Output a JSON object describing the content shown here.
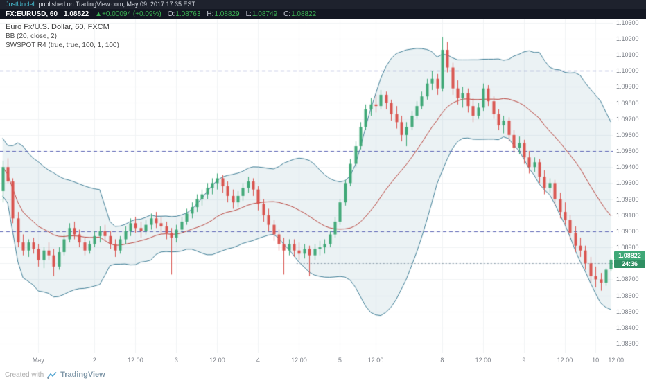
{
  "meta_bar": {
    "username": "JustUncleL",
    "published_text": "published on TradingView.com, May 09, 2017 17:35 EST"
  },
  "symbol_bar": {
    "symbol": "FX:EURUSD, 60",
    "last": "1.08822",
    "change": "▲+0.00094 (+0.09%)",
    "o_label": "O:",
    "o": "1.08763",
    "h_label": "H:",
    "h": "1.08829",
    "l_label": "L:",
    "l": "1.08749",
    "c_label": "C:",
    "c": "1.08822"
  },
  "legend": {
    "title": "Euro Fx/U.S. Dollar, 60, FXCM",
    "bb": "BB (20, close, 2)",
    "swspot": "SWSPOT R4 (true, true, 100, 1, 100)"
  },
  "price_badge": {
    "price": "1.08822",
    "countdown": "24:36"
  },
  "footer": {
    "created_with": "Created with",
    "brand": "TradingView"
  },
  "colors": {
    "up": "#3fa877",
    "down": "#d9544f",
    "band_line": "#3e7d95",
    "band_fill": "rgba(62,125,149,0.10)",
    "basis": "#b8433c",
    "pivot": "#5b63b5",
    "dotted_level": "#8a9ba8",
    "grid": "#f0f3f5",
    "badge_bg": "#3fa877",
    "countdown_bg": "#2f8f63"
  },
  "chart_data": {
    "type": "candlestick",
    "title": "Euro Fx/U.S. Dollar, 60, FXCM",
    "interval_minutes": 60,
    "indicators": [
      "BB (20, close, 2)",
      "SWSPOT R4 (true, true, 100, 1, 100)"
    ],
    "y_min": 1.0824,
    "y_max": 1.1032,
    "last_price": 1.08822,
    "y_ticks": [
      "1.10300",
      "1.10200",
      "1.10100",
      "1.10000",
      "1.09900",
      "1.09800",
      "1.09700",
      "1.09600",
      "1.09500",
      "1.09400",
      "1.09300",
      "1.09200",
      "1.09100",
      "1.09000",
      "1.08900",
      "1.08800",
      "1.08700",
      "1.08600",
      "1.08500",
      "1.08400",
      "1.08300"
    ],
    "x_ticks": [
      {
        "i": 7,
        "label": "May"
      },
      {
        "i": 18,
        "label": "2"
      },
      {
        "i": 26,
        "label": "12:00"
      },
      {
        "i": 34,
        "label": "3"
      },
      {
        "i": 42,
        "label": "12:00"
      },
      {
        "i": 50,
        "label": "4"
      },
      {
        "i": 58,
        "label": "12:00"
      },
      {
        "i": 66,
        "label": "5"
      },
      {
        "i": 73,
        "label": "12:00"
      },
      {
        "i": 86,
        "label": "8"
      },
      {
        "i": 94,
        "label": "12:00"
      },
      {
        "i": 102,
        "label": "9"
      },
      {
        "i": 110,
        "label": "12:00"
      },
      {
        "i": 116,
        "label": "10"
      },
      {
        "i": 120,
        "label": "12:00"
      }
    ],
    "levels": [
      {
        "price": 1.1,
        "style": "dashed",
        "from": 0
      },
      {
        "price": 1.095,
        "style": "dashed",
        "from": 0
      },
      {
        "price": 1.09,
        "style": "dashed",
        "from": 0
      },
      {
        "price": 1.088,
        "style": "dotted",
        "from": 58
      }
    ],
    "bollinger": {
      "length": 20,
      "mult": 2,
      "source": "close"
    },
    "candles": [
      [
        1.0925,
        1.0944,
        1.0918,
        1.094
      ],
      [
        1.094,
        1.09455,
        1.093,
        1.0931
      ],
      [
        1.0931,
        1.0933,
        1.0905,
        1.0908
      ],
      [
        1.0908,
        1.0912,
        1.089,
        1.0893
      ],
      [
        1.0893,
        1.0898,
        1.0885,
        1.0888
      ],
      [
        1.0888,
        1.0895,
        1.0884,
        1.0893
      ],
      [
        1.0893,
        1.0896,
        1.0886,
        1.0889
      ],
      [
        1.0889,
        1.0892,
        1.0878,
        1.0882
      ],
      [
        1.0882,
        1.089,
        1.0877,
        1.0888
      ],
      [
        1.0888,
        1.0893,
        1.0882,
        1.0885
      ],
      [
        1.0885,
        1.0889,
        1.0872,
        1.0878
      ],
      [
        1.0878,
        1.089,
        1.0876,
        1.0887
      ],
      [
        1.0887,
        1.0898,
        1.0885,
        1.0895
      ],
      [
        1.0895,
        1.0905,
        1.0893,
        1.0902
      ],
      [
        1.0902,
        1.0906,
        1.0895,
        1.0898
      ],
      [
        1.0898,
        1.0901,
        1.089,
        1.0893
      ],
      [
        1.0893,
        1.0896,
        1.0885,
        1.0888
      ],
      [
        1.0888,
        1.0894,
        1.0886,
        1.0892
      ],
      [
        1.0892,
        1.09,
        1.089,
        1.0897
      ],
      [
        1.0897,
        1.0903,
        1.0893,
        1.09
      ],
      [
        1.09,
        1.0904,
        1.0894,
        1.0897
      ],
      [
        1.0897,
        1.09,
        1.0889,
        1.0892
      ],
      [
        1.0892,
        1.0895,
        1.0884,
        1.0888
      ],
      [
        1.0888,
        1.0897,
        1.0886,
        1.0895
      ],
      [
        1.0895,
        1.0903,
        1.0892,
        1.09
      ],
      [
        1.09,
        1.0908,
        1.0897,
        1.0905
      ],
      [
        1.0905,
        1.0909,
        1.0899,
        1.0902
      ],
      [
        1.0902,
        1.0906,
        1.0896,
        1.09
      ],
      [
        1.09,
        1.0907,
        1.0898,
        1.0904
      ],
      [
        1.0904,
        1.0911,
        1.0901,
        1.0908
      ],
      [
        1.0908,
        1.0912,
        1.0902,
        1.0905
      ],
      [
        1.0905,
        1.0909,
        1.0899,
        1.0903
      ],
      [
        1.0903,
        1.0906,
        1.0895,
        1.0899
      ],
      [
        1.0899,
        1.0902,
        1.0873,
        1.0896
      ],
      [
        1.0896,
        1.0904,
        1.0893,
        1.0901
      ],
      [
        1.0901,
        1.0909,
        1.0899,
        1.0906
      ],
      [
        1.0906,
        1.0914,
        1.0904,
        1.0911
      ],
      [
        1.0911,
        1.0918,
        1.0908,
        1.0915
      ],
      [
        1.0915,
        1.0923,
        1.0912,
        1.092
      ],
      [
        1.092,
        1.0926,
        1.0916,
        1.0923
      ],
      [
        1.0923,
        1.093,
        1.092,
        1.0927
      ],
      [
        1.0927,
        1.0933,
        1.0923,
        1.093
      ],
      [
        1.093,
        1.0936,
        1.0926,
        1.0933
      ],
      [
        1.0933,
        1.0935,
        1.0924,
        1.0928
      ],
      [
        1.0928,
        1.0931,
        1.0918,
        1.0922
      ],
      [
        1.0922,
        1.0926,
        1.0914,
        1.0918
      ],
      [
        1.0918,
        1.0925,
        1.0915,
        1.0922
      ],
      [
        1.0922,
        1.093,
        1.0919,
        1.0927
      ],
      [
        1.0927,
        1.0934,
        1.0924,
        1.0931
      ],
      [
        1.0931,
        1.0933,
        1.0922,
        1.0926
      ],
      [
        1.0926,
        1.0928,
        1.0913,
        1.0917
      ],
      [
        1.0917,
        1.092,
        1.0906,
        1.091
      ],
      [
        1.091,
        1.0914,
        1.09,
        1.0904
      ],
      [
        1.0904,
        1.0907,
        1.0894,
        1.0898
      ],
      [
        1.0898,
        1.0901,
        1.0888,
        1.0892
      ],
      [
        1.0892,
        1.0896,
        1.0873,
        1.0888
      ],
      [
        1.0888,
        1.0895,
        1.0885,
        1.0892
      ],
      [
        1.0892,
        1.0895,
        1.0884,
        1.0888
      ],
      [
        1.0888,
        1.0893,
        1.0882,
        1.0886
      ],
      [
        1.0886,
        1.0892,
        1.0883,
        1.0889
      ],
      [
        1.0889,
        1.0891,
        1.0872,
        1.0885
      ],
      [
        1.0885,
        1.0892,
        1.0882,
        1.0889
      ],
      [
        1.0889,
        1.0894,
        1.0885,
        1.089
      ],
      [
        1.089,
        1.0895,
        1.0886,
        1.0892
      ],
      [
        1.0892,
        1.09,
        1.089,
        1.0898
      ],
      [
        1.0898,
        1.0909,
        1.0896,
        1.0906
      ],
      [
        1.0906,
        1.092,
        1.0904,
        1.0918
      ],
      [
        1.0918,
        1.0932,
        1.0916,
        1.093
      ],
      [
        1.093,
        1.0945,
        1.0928,
        1.0942
      ],
      [
        1.0942,
        1.0956,
        1.094,
        1.0953
      ],
      [
        1.0953,
        1.0968,
        1.0951,
        1.0965
      ],
      [
        1.0965,
        1.0979,
        1.0963,
        1.0976
      ],
      [
        1.0976,
        1.0983,
        1.0972,
        1.0979
      ],
      [
        1.0979,
        1.0985,
        1.0974,
        1.0978
      ],
      [
        1.0978,
        1.0988,
        1.0976,
        1.0985
      ],
      [
        1.0985,
        1.0987,
        1.0976,
        1.098
      ],
      [
        1.098,
        1.0982,
        1.0969,
        1.0973
      ],
      [
        1.0973,
        1.0978,
        1.0964,
        1.0968
      ],
      [
        1.0968,
        1.0972,
        1.0956,
        1.096
      ],
      [
        1.096,
        1.0968,
        1.0953,
        1.0965
      ],
      [
        1.0965,
        1.0975,
        1.0963,
        1.0972
      ],
      [
        1.0972,
        1.0981,
        1.097,
        1.0978
      ],
      [
        1.0978,
        1.0987,
        1.0976,
        1.0984
      ],
      [
        1.0984,
        1.0995,
        1.0982,
        1.0992
      ],
      [
        1.0992,
        1.1,
        1.0988,
        1.0995
      ],
      [
        1.0995,
        1.0998,
        1.0985,
        1.0989
      ],
      [
        1.0989,
        1.1021,
        1.0987,
        1.1013
      ],
      [
        1.1013,
        1.1018,
        1.0999,
        1.1002
      ],
      [
        1.1002,
        1.1005,
        1.0985,
        1.0989
      ],
      [
        1.0989,
        1.0994,
        1.0979,
        1.0983
      ],
      [
        1.0983,
        1.099,
        1.0977,
        1.0986
      ],
      [
        1.0986,
        1.0989,
        1.0974,
        1.0978
      ],
      [
        1.0978,
        1.0983,
        1.0968,
        1.0972
      ],
      [
        1.0972,
        1.098,
        1.097,
        1.0977
      ],
      [
        1.0977,
        1.0992,
        1.0975,
        1.0989
      ],
      [
        1.0989,
        1.0991,
        1.0978,
        1.0981
      ],
      [
        1.0981,
        1.0984,
        1.097,
        1.0973
      ],
      [
        1.0973,
        1.0976,
        1.0963,
        1.0966
      ],
      [
        1.0966,
        1.0972,
        1.0961,
        1.0969
      ],
      [
        1.0969,
        1.0971,
        1.0956,
        1.096
      ],
      [
        1.096,
        1.0963,
        1.0949,
        1.0952
      ],
      [
        1.0952,
        1.0959,
        1.0948,
        1.0955
      ],
      [
        1.0955,
        1.0957,
        1.0942,
        1.0946
      ],
      [
        1.0946,
        1.095,
        1.0936,
        1.094
      ],
      [
        1.094,
        1.0946,
        1.0937,
        1.0943
      ],
      [
        1.0943,
        1.0945,
        1.093,
        1.0934
      ],
      [
        1.0934,
        1.0938,
        1.0923,
        1.0927
      ],
      [
        1.0927,
        1.0933,
        1.0924,
        1.093
      ],
      [
        1.093,
        1.0932,
        1.0916,
        1.092
      ],
      [
        1.092,
        1.0924,
        1.0908,
        1.0912
      ],
      [
        1.0912,
        1.0918,
        1.0904,
        1.0907
      ],
      [
        1.0907,
        1.091,
        1.0895,
        1.0899
      ],
      [
        1.0899,
        1.0903,
        1.0887,
        1.0891
      ],
      [
        1.0891,
        1.0896,
        1.0884,
        1.0888
      ],
      [
        1.0888,
        1.0891,
        1.0876,
        1.088
      ],
      [
        1.088,
        1.0884,
        1.0868,
        1.0872
      ],
      [
        1.0872,
        1.0878,
        1.0865,
        1.087
      ],
      [
        1.087,
        1.0874,
        1.0863,
        1.0868
      ],
      [
        1.0868,
        1.0877,
        1.0866,
        1.0876
      ],
      [
        1.08763,
        1.08829,
        1.08749,
        1.08822
      ]
    ]
  }
}
